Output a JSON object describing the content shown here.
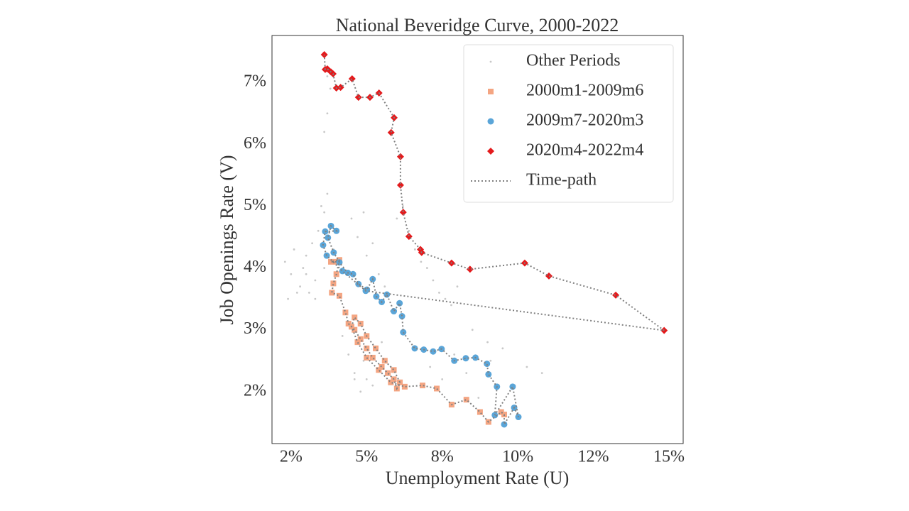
{
  "chart_data": {
    "type": "scatter",
    "title": "National Beveridge Curve, 2000-2022",
    "x_label": "Unemployment Rate (U)",
    "y_label": "Job Openings Rate (V)",
    "xlim": [
      1.87,
      15.47
    ],
    "ylim": [
      1.16,
      7.76
    ],
    "xticks": [
      {
        "value": 2.5,
        "label": "2%"
      },
      {
        "value": 5,
        "label": "5%"
      },
      {
        "value": 7.5,
        "label": "8%"
      },
      {
        "value": 10,
        "label": "10%"
      },
      {
        "value": 12.5,
        "label": "12%"
      },
      {
        "value": 15,
        "label": "15%"
      }
    ],
    "yticks": [
      {
        "value": 2,
        "label": "2%"
      },
      {
        "value": 3,
        "label": "3%"
      },
      {
        "value": 4,
        "label": "4%"
      },
      {
        "value": 5,
        "label": "5%"
      },
      {
        "value": 6,
        "label": "6%"
      },
      {
        "value": 7,
        "label": "7%"
      }
    ],
    "legend": "upper right",
    "series": [
      {
        "name": "Other Periods",
        "color": "#c8c8c8",
        "marker": "point",
        "x": [
          2.3,
          2.5,
          2.6,
          2.8,
          2.9,
          3.0,
          3.1,
          3.2,
          3.3,
          3.4,
          3.5,
          3.6,
          3.7,
          3.8,
          2.4,
          2.7,
          3.0,
          3.3,
          3.6,
          3.9,
          3.6,
          3.7,
          3.8,
          3.7,
          4.5,
          4.7,
          4.9,
          5.0,
          5.2,
          5.4,
          5.6,
          5.8,
          4.6,
          4.9,
          5.2,
          5.5,
          5.8,
          6.0,
          6.2,
          6.4,
          6.6,
          6.8,
          7.0,
          7.2,
          7.4,
          7.6,
          7.8,
          8.0,
          7.1,
          7.5,
          7.9,
          8.3,
          8.7,
          9.1,
          9.5,
          9.9,
          10.3,
          10.8,
          8.5,
          9.0,
          4.2,
          4.4,
          4.6,
          4.8,
          5.0
        ],
        "values": [
          4.1,
          3.9,
          4.3,
          3.7,
          4.0,
          4.2,
          3.6,
          4.4,
          3.8,
          4.6,
          5.0,
          4.9,
          5.2,
          4.7,
          3.5,
          3.6,
          3.9,
          3.5,
          4.0,
          4.3,
          6.2,
          6.5,
          6.9,
          7.1,
          4.8,
          4.5,
          4.9,
          4.2,
          4.4,
          3.9,
          3.7,
          3.3,
          2.2,
          2.5,
          2.1,
          2.8,
          2.4,
          4.8,
          5.0,
          4.6,
          4.3,
          4.1,
          4.0,
          3.8,
          3.6,
          3.5,
          3.4,
          3.7,
          2.4,
          2.2,
          2.6,
          2.3,
          1.9,
          2.5,
          2.7,
          2.1,
          2.4,
          2.3,
          3.0,
          2.8,
          2.9,
          2.6,
          2.3,
          2.0,
          2.2
        ]
      },
      {
        "name": "2000m1-2009m6",
        "color": "#f4a582",
        "marker": "square",
        "x": [
          4.0,
          3.82,
          4.1,
          4.0,
          3.9,
          3.85,
          4.1,
          4.3,
          4.4,
          4.6,
          4.8,
          5.0,
          5.2,
          5.5,
          5.7,
          5.9,
          6.0,
          6.1,
          5.9,
          5.6,
          5.3,
          5.0,
          4.8,
          4.6,
          4.5,
          4.7,
          5.0,
          5.4,
          5.8,
          6.26,
          6.85,
          7.32,
          7.81,
          8.3,
          8.75,
          9.03,
          9.45,
          9.55
        ],
        "values": [
          4.1,
          4.1,
          4.13,
          3.9,
          3.75,
          3.6,
          3.55,
          3.28,
          3.1,
          3.0,
          2.85,
          2.7,
          2.55,
          2.4,
          2.3,
          2.2,
          2.05,
          2.15,
          2.35,
          2.5,
          2.7,
          2.9,
          3.1,
          3.2,
          3.05,
          2.8,
          2.55,
          2.35,
          2.15,
          2.08,
          2.1,
          2.05,
          1.79,
          1.87,
          1.67,
          1.51,
          1.67,
          1.63
        ]
      },
      {
        "name": "2009m7-2020m3",
        "color": "#5aa5d8",
        "marker": "circle",
        "x": [
          9.55,
          9.88,
          10.02,
          9.83,
          9.24,
          9.31,
          9.03,
          8.98,
          8.6,
          8.28,
          7.9,
          7.48,
          7.2,
          6.89,
          6.59,
          6.21,
          6.17,
          6.09,
          5.9,
          5.67,
          5.5,
          5.32,
          5.2,
          5.01,
          4.73,
          4.55,
          4.38,
          4.1,
          3.91,
          3.72,
          3.82,
          4.0,
          3.63,
          3.56,
          3.68,
          4.2,
          4.97
        ],
        "values": [
          1.47,
          1.74,
          1.59,
          2.08,
          1.62,
          2.08,
          2.28,
          2.45,
          2.55,
          2.54,
          2.5,
          2.69,
          2.65,
          2.68,
          2.7,
          2.96,
          3.22,
          3.43,
          3.3,
          3.57,
          3.45,
          3.54,
          3.82,
          3.65,
          3.74,
          3.9,
          3.92,
          4.09,
          4.25,
          4.49,
          4.68,
          4.6,
          4.59,
          4.37,
          4.2,
          3.95,
          3.63
        ]
      },
      {
        "name": "2020m4-2022m4",
        "color": "#e41a1c",
        "marker": "diamond",
        "x": [
          14.84,
          13.24,
          11.03,
          10.23,
          8.42,
          7.81,
          6.82,
          6.78,
          6.4,
          6.21,
          6.12,
          6.12,
          5.81,
          5.91,
          5.41,
          5.11,
          4.73,
          4.52,
          4.14,
          4.0,
          3.89,
          3.82,
          3.7,
          3.63,
          3.6
        ],
        "values": [
          2.99,
          3.56,
          3.87,
          4.08,
          3.98,
          4.08,
          4.25,
          4.3,
          4.51,
          4.9,
          5.34,
          5.8,
          6.19,
          6.43,
          6.83,
          6.76,
          6.76,
          7.06,
          6.92,
          6.91,
          7.14,
          7.17,
          7.22,
          7.21,
          7.45
        ]
      }
    ],
    "time_path": {
      "name": "Time-path",
      "color": "#808080"
    }
  }
}
